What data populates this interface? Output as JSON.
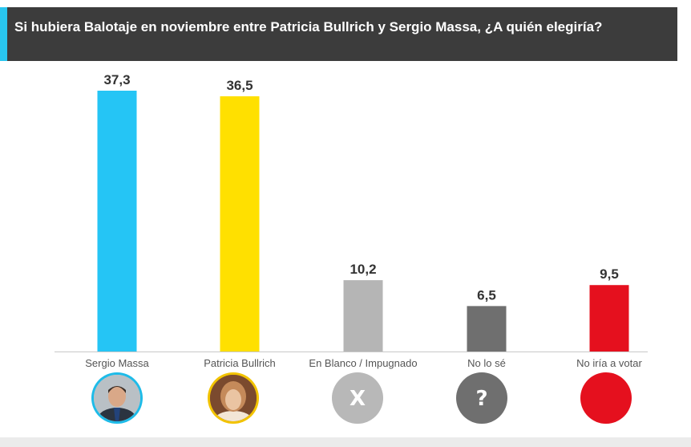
{
  "header": {
    "title": "Si hubiera Balotaje en noviembre entre Patricia Bullrich y Sergio Massa, ¿A quién elegiría?"
  },
  "colors": {
    "header_bg": "#3c3c3c",
    "accent": "#29c6ef",
    "bars": [
      "#25c5f5",
      "#ffe000",
      "#b5b5b5",
      "#6f6f6f",
      "#e5101e"
    ]
  },
  "icons": [
    "sergio-massa-photo",
    "patricia-bullrich-photo",
    "x-icon",
    "question-icon",
    "red-circle-icon"
  ],
  "icon_labels": [
    "",
    "",
    "X",
    "?",
    ""
  ],
  "chart_data": {
    "type": "bar",
    "title": "Si hubiera Balotaje en noviembre entre Patricia Bullrich y Sergio Massa, ¿A quién elegiría?",
    "categories": [
      "Sergio Massa",
      "Patricia Bullrich",
      "En Blanco / Impugnado",
      "No lo sé",
      "No iría a votar"
    ],
    "values": [
      37.3,
      36.5,
      10.2,
      6.5,
      9.5
    ],
    "value_labels": [
      "37,3",
      "36,5",
      "10,2",
      "6,5",
      "9,5"
    ],
    "xlabel": "",
    "ylabel": "",
    "ylim": [
      0,
      37.3
    ],
    "grid": false,
    "legend": "none"
  }
}
